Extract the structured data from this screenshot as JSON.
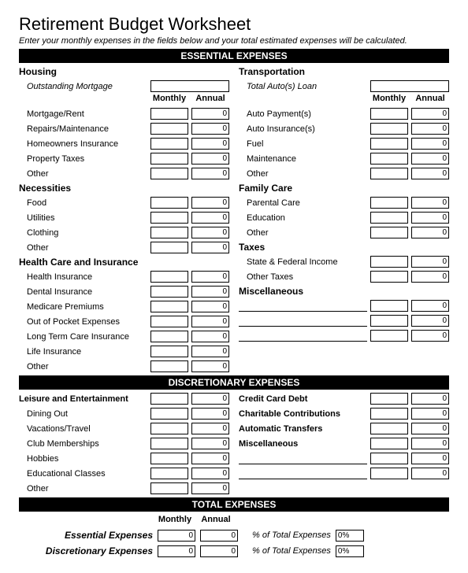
{
  "title": "Retirement Budget Worksheet",
  "instructions": "Enter your monthly expenses in the fields below and your total estimated expenses will be calculated.",
  "bars": {
    "essential": "ESSENTIAL EXPENSES",
    "discretionary": "DISCRETIONARY EXPENSES",
    "total": "TOTAL EXPENSES"
  },
  "col_headers": {
    "monthly": "Monthly",
    "annual": "Annual"
  },
  "zero": "0",
  "essential": {
    "left": {
      "housing": {
        "heading": "Housing",
        "outstanding": "Outstanding Mortgage",
        "items": [
          "Mortgage/Rent",
          "Repairs/Maintenance",
          "Homeowners Insurance",
          "Property Taxes",
          "Other"
        ]
      },
      "necessities": {
        "heading": "Necessities",
        "items": [
          "Food",
          "Utilities",
          "Clothing",
          "Other"
        ]
      },
      "health": {
        "heading": "Health Care and Insurance",
        "items": [
          "Health Insurance",
          "Dental Insurance",
          "Medicare Premiums",
          "Out of Pocket Expenses",
          "Long Term Care Insurance",
          "Life Insurance",
          "Other"
        ]
      }
    },
    "right": {
      "transportation": {
        "heading": "Transportation",
        "total_auto": "Total Auto(s) Loan",
        "items": [
          "Auto Payment(s)",
          "Auto Insurance(s)",
          "Fuel",
          "Maintenance",
          "Other"
        ]
      },
      "family": {
        "heading": "Family Care",
        "items": [
          "Parental Care",
          "Education",
          "Other"
        ]
      },
      "taxes": {
        "heading": "Taxes",
        "items": [
          "State & Federal Income",
          "Other Taxes"
        ]
      },
      "misc": {
        "heading": "Miscellaneous",
        "blank_rows": 3
      }
    }
  },
  "discretionary": {
    "left": {
      "leisure": {
        "heading": "Leisure and Entertainment",
        "items": [
          "Dining Out",
          "Vacations/Travel",
          "Club Memberships",
          "Hobbies",
          "Educational Classes",
          "Other"
        ]
      }
    },
    "right": {
      "items": [
        "Credit Card Debt",
        "Charitable Contributions",
        "Automatic Transfers",
        "Miscellaneous"
      ],
      "blank_rows": 2
    }
  },
  "totals": {
    "essential_label": "Essential Expenses",
    "discretionary_label": "Discretionary Expenses",
    "pct_label": "% of Total Expenses",
    "pct_value": "0%"
  }
}
